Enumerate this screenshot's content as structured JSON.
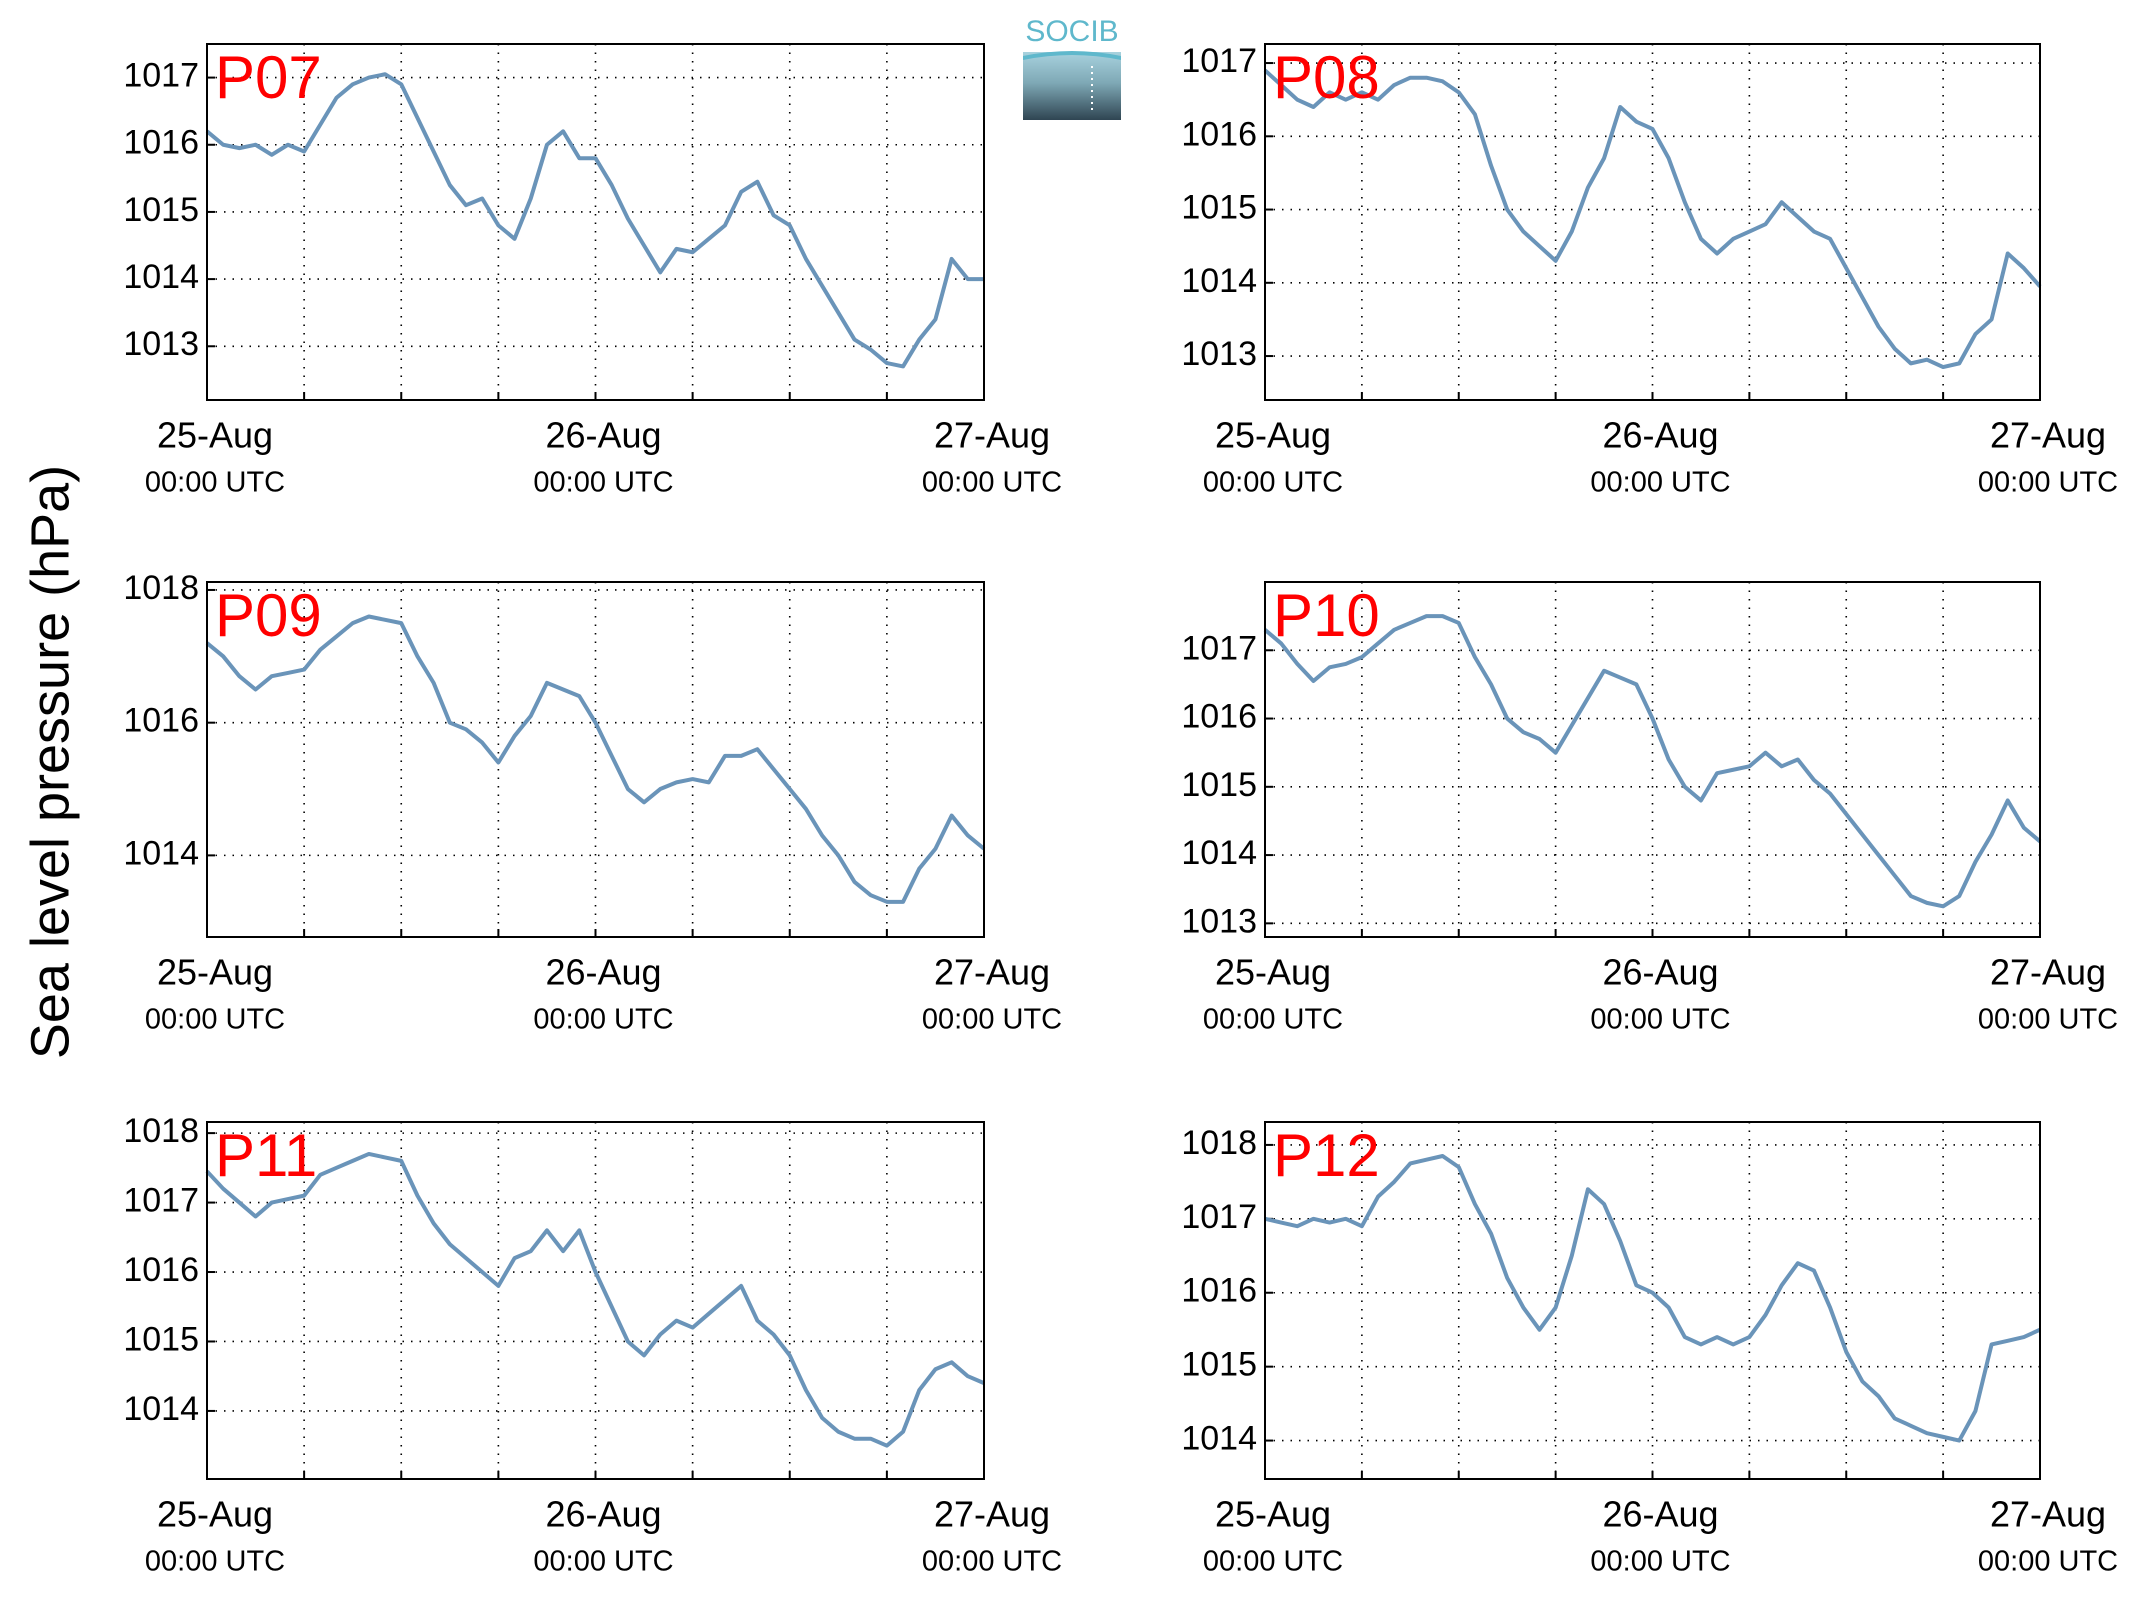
{
  "figure": {
    "ylabel": "Sea level pressure (hPa)",
    "logo": "SOCIB"
  },
  "chart_data": [
    {
      "type": "line",
      "title": "P07",
      "x": [
        0,
        1,
        2,
        3,
        4,
        5,
        6,
        7,
        8,
        9,
        10,
        11,
        12,
        13,
        14,
        15,
        16,
        17,
        18,
        19,
        20,
        21,
        22,
        23,
        24,
        25,
        26,
        27,
        28,
        29,
        30,
        31,
        32,
        33,
        34,
        35,
        36,
        37,
        38,
        39,
        40,
        41,
        42,
        43,
        44,
        45,
        46,
        47,
        48
      ],
      "series": [
        {
          "color": "#6a94b9",
          "values": [
            1016.2,
            1016.0,
            1015.95,
            1016.0,
            1015.85,
            1016.0,
            1015.9,
            1016.3,
            1016.7,
            1016.9,
            1017.0,
            1017.05,
            1016.9,
            1016.4,
            1015.9,
            1015.4,
            1015.1,
            1015.2,
            1014.8,
            1014.6,
            1015.2,
            1016.0,
            1016.2,
            1015.8,
            1015.8,
            1015.4,
            1014.9,
            1014.5,
            1014.1,
            1014.45,
            1014.4,
            1014.6,
            1014.8,
            1015.3,
            1015.45,
            1014.95,
            1014.8,
            1014.3,
            1013.9,
            1013.5,
            1013.1,
            1012.95,
            1012.75,
            1012.7,
            1013.1,
            1013.4,
            1014.3,
            1014.0,
            1014.0
          ]
        }
      ],
      "xlim": [
        0,
        48
      ],
      "xticks": [
        {
          "value": 0,
          "label": "25-Aug"
        },
        {
          "value": 24,
          "label": "26-Aug"
        },
        {
          "value": 48,
          "label": "27-Aug"
        }
      ],
      "xtick_sublabels": [
        "00:00 UTC",
        "00:00 UTC",
        "00:00 UTC"
      ],
      "xminorticks": [
        6,
        12,
        18,
        30,
        36,
        42
      ],
      "ylim": [
        1012.2,
        1017.5
      ],
      "yticks": [
        1013,
        1014,
        1015,
        1016,
        1017
      ],
      "grid": true
    },
    {
      "type": "line",
      "title": "P08",
      "x": [
        0,
        1,
        2,
        3,
        4,
        5,
        6,
        7,
        8,
        9,
        10,
        11,
        12,
        13,
        14,
        15,
        16,
        17,
        18,
        19,
        20,
        21,
        22,
        23,
        24,
        25,
        26,
        27,
        28,
        29,
        30,
        31,
        32,
        33,
        34,
        35,
        36,
        37,
        38,
        39,
        40,
        41,
        42,
        43,
        44,
        45,
        46,
        47,
        48
      ],
      "series": [
        {
          "color": "#6a94b9",
          "values": [
            1016.9,
            1016.7,
            1016.5,
            1016.4,
            1016.6,
            1016.5,
            1016.6,
            1016.5,
            1016.7,
            1016.8,
            1016.8,
            1016.75,
            1016.6,
            1016.3,
            1015.6,
            1015.0,
            1014.7,
            1014.5,
            1014.3,
            1014.7,
            1015.3,
            1015.7,
            1016.4,
            1016.2,
            1016.1,
            1015.7,
            1015.1,
            1014.6,
            1014.4,
            1014.6,
            1014.7,
            1014.8,
            1015.1,
            1014.9,
            1014.7,
            1014.6,
            1014.2,
            1013.8,
            1013.4,
            1013.1,
            1012.9,
            1012.95,
            1012.85,
            1012.9,
            1013.3,
            1013.5,
            1014.4,
            1014.2,
            1013.95
          ]
        }
      ],
      "xlim": [
        0,
        48
      ],
      "xticks": [
        {
          "value": 0,
          "label": "25-Aug"
        },
        {
          "value": 24,
          "label": "26-Aug"
        },
        {
          "value": 48,
          "label": "27-Aug"
        }
      ],
      "xtick_sublabels": [
        "00:00 UTC",
        "00:00 UTC",
        "00:00 UTC"
      ],
      "xminorticks": [
        6,
        12,
        18,
        30,
        36,
        42
      ],
      "ylim": [
        1012.4,
        1017.26
      ],
      "yticks": [
        1013,
        1014,
        1015,
        1016,
        1017
      ],
      "grid": true
    },
    {
      "type": "line",
      "title": "P09",
      "x": [
        0,
        1,
        2,
        3,
        4,
        5,
        6,
        7,
        8,
        9,
        10,
        11,
        12,
        13,
        14,
        15,
        16,
        17,
        18,
        19,
        20,
        21,
        22,
        23,
        24,
        25,
        26,
        27,
        28,
        29,
        30,
        31,
        32,
        33,
        34,
        35,
        36,
        37,
        38,
        39,
        40,
        41,
        42,
        43,
        44,
        45,
        46,
        47,
        48
      ],
      "series": [
        {
          "color": "#6a94b9",
          "values": [
            1017.2,
            1017.0,
            1016.7,
            1016.5,
            1016.7,
            1016.75,
            1016.8,
            1017.1,
            1017.3,
            1017.5,
            1017.6,
            1017.55,
            1017.5,
            1017.0,
            1016.6,
            1016.0,
            1015.9,
            1015.7,
            1015.4,
            1015.8,
            1016.1,
            1016.6,
            1016.5,
            1016.4,
            1016.0,
            1015.5,
            1015.0,
            1014.8,
            1015.0,
            1015.1,
            1015.15,
            1015.1,
            1015.5,
            1015.5,
            1015.6,
            1015.3,
            1015.0,
            1014.7,
            1014.3,
            1014.0,
            1013.6,
            1013.4,
            1013.3,
            1013.3,
            1013.8,
            1014.1,
            1014.6,
            1014.3,
            1014.1
          ]
        }
      ],
      "xlim": [
        0,
        48
      ],
      "xticks": [
        {
          "value": 0,
          "label": "25-Aug"
        },
        {
          "value": 24,
          "label": "26-Aug"
        },
        {
          "value": 48,
          "label": "27-Aug"
        }
      ],
      "xtick_sublabels": [
        "00:00 UTC",
        "00:00 UTC",
        "00:00 UTC"
      ],
      "xminorticks": [
        6,
        12,
        18,
        30,
        36,
        42
      ],
      "ylim": [
        1012.77,
        1018.12
      ],
      "yticks": [
        1014,
        1016,
        1018
      ],
      "grid": true
    },
    {
      "type": "line",
      "title": "P10",
      "x": [
        0,
        1,
        2,
        3,
        4,
        5,
        6,
        7,
        8,
        9,
        10,
        11,
        12,
        13,
        14,
        15,
        16,
        17,
        18,
        19,
        20,
        21,
        22,
        23,
        24,
        25,
        26,
        27,
        28,
        29,
        30,
        31,
        32,
        33,
        34,
        35,
        36,
        37,
        38,
        39,
        40,
        41,
        42,
        43,
        44,
        45,
        46,
        47,
        48
      ],
      "series": [
        {
          "color": "#6a94b9",
          "values": [
            1017.3,
            1017.1,
            1016.8,
            1016.55,
            1016.75,
            1016.8,
            1016.9,
            1017.1,
            1017.3,
            1017.4,
            1017.5,
            1017.5,
            1017.4,
            1016.9,
            1016.5,
            1016.0,
            1015.8,
            1015.7,
            1015.5,
            1015.9,
            1016.3,
            1016.7,
            1016.6,
            1016.5,
            1016.0,
            1015.4,
            1015.0,
            1014.8,
            1015.2,
            1015.25,
            1015.3,
            1015.5,
            1015.3,
            1015.4,
            1015.1,
            1014.9,
            1014.6,
            1014.3,
            1014.0,
            1013.7,
            1013.4,
            1013.3,
            1013.25,
            1013.4,
            1013.9,
            1014.3,
            1014.8,
            1014.4,
            1014.2
          ]
        }
      ],
      "xlim": [
        0,
        48
      ],
      "xticks": [
        {
          "value": 0,
          "label": "25-Aug"
        },
        {
          "value": 24,
          "label": "26-Aug"
        },
        {
          "value": 48,
          "label": "27-Aug"
        }
      ],
      "xtick_sublabels": [
        "00:00 UTC",
        "00:00 UTC",
        "00:00 UTC"
      ],
      "xminorticks": [
        6,
        12,
        18,
        30,
        36,
        42
      ],
      "ylim": [
        1012.8,
        1018.0
      ],
      "yticks": [
        1013,
        1014,
        1015,
        1016,
        1017
      ],
      "grid": true
    },
    {
      "type": "line",
      "title": "P11",
      "x": [
        0,
        1,
        2,
        3,
        4,
        5,
        6,
        7,
        8,
        9,
        10,
        11,
        12,
        13,
        14,
        15,
        16,
        17,
        18,
        19,
        20,
        21,
        22,
        23,
        24,
        25,
        26,
        27,
        28,
        29,
        30,
        31,
        32,
        33,
        34,
        35,
        36,
        37,
        38,
        39,
        40,
        41,
        42,
        43,
        44,
        45,
        46,
        47,
        48
      ],
      "series": [
        {
          "color": "#6a94b9",
          "values": [
            1017.45,
            1017.2,
            1017.0,
            1016.8,
            1017.0,
            1017.05,
            1017.1,
            1017.4,
            1017.5,
            1017.6,
            1017.7,
            1017.65,
            1017.6,
            1017.1,
            1016.7,
            1016.4,
            1016.2,
            1016.0,
            1015.8,
            1016.2,
            1016.3,
            1016.6,
            1016.3,
            1016.6,
            1016.0,
            1015.5,
            1015.0,
            1014.8,
            1015.1,
            1015.3,
            1015.2,
            1015.4,
            1015.6,
            1015.8,
            1015.3,
            1015.1,
            1014.8,
            1014.3,
            1013.9,
            1013.7,
            1013.6,
            1013.6,
            1013.5,
            1013.7,
            1014.3,
            1014.6,
            1014.7,
            1014.5,
            1014.4
          ]
        }
      ],
      "xlim": [
        0,
        48
      ],
      "xticks": [
        {
          "value": 0,
          "label": "25-Aug"
        },
        {
          "value": 24,
          "label": "26-Aug"
        },
        {
          "value": 48,
          "label": "27-Aug"
        }
      ],
      "xtick_sublabels": [
        "00:00 UTC",
        "00:00 UTC",
        "00:00 UTC"
      ],
      "xminorticks": [
        6,
        12,
        18,
        30,
        36,
        42
      ],
      "ylim": [
        1013.02,
        1018.16
      ],
      "yticks": [
        1014,
        1015,
        1016,
        1017,
        1018
      ],
      "grid": true
    },
    {
      "type": "line",
      "title": "P12",
      "x": [
        0,
        1,
        2,
        3,
        4,
        5,
        6,
        7,
        8,
        9,
        10,
        11,
        12,
        13,
        14,
        15,
        16,
        17,
        18,
        19,
        20,
        21,
        22,
        23,
        24,
        25,
        26,
        27,
        28,
        29,
        30,
        31,
        32,
        33,
        34,
        35,
        36,
        37,
        38,
        39,
        40,
        41,
        42,
        43,
        44,
        45,
        46,
        47,
        48
      ],
      "series": [
        {
          "color": "#6a94b9",
          "values": [
            1017.0,
            1016.95,
            1016.9,
            1017.0,
            1016.95,
            1017.0,
            1016.9,
            1017.3,
            1017.5,
            1017.75,
            1017.8,
            1017.85,
            1017.7,
            1017.2,
            1016.8,
            1016.2,
            1015.8,
            1015.5,
            1015.8,
            1016.5,
            1017.4,
            1017.2,
            1016.7,
            1016.1,
            1016.0,
            1015.8,
            1015.4,
            1015.3,
            1015.4,
            1015.3,
            1015.4,
            1015.7,
            1016.1,
            1016.4,
            1016.3,
            1015.8,
            1015.2,
            1014.8,
            1014.6,
            1014.3,
            1014.2,
            1014.1,
            1014.05,
            1014.0,
            1014.4,
            1015.3,
            1015.35,
            1015.4,
            1015.5
          ]
        }
      ],
      "xlim": [
        0,
        48
      ],
      "xticks": [
        {
          "value": 0,
          "label": "25-Aug"
        },
        {
          "value": 24,
          "label": "26-Aug"
        },
        {
          "value": 48,
          "label": "27-Aug"
        }
      ],
      "xtick_sublabels": [
        "00:00 UTC",
        "00:00 UTC",
        "00:00 UTC"
      ],
      "xminorticks": [
        6,
        12,
        18,
        30,
        36,
        42
      ],
      "ylim": [
        1013.48,
        1018.31
      ],
      "yticks": [
        1014,
        1015,
        1016,
        1017,
        1018
      ],
      "grid": true
    }
  ]
}
